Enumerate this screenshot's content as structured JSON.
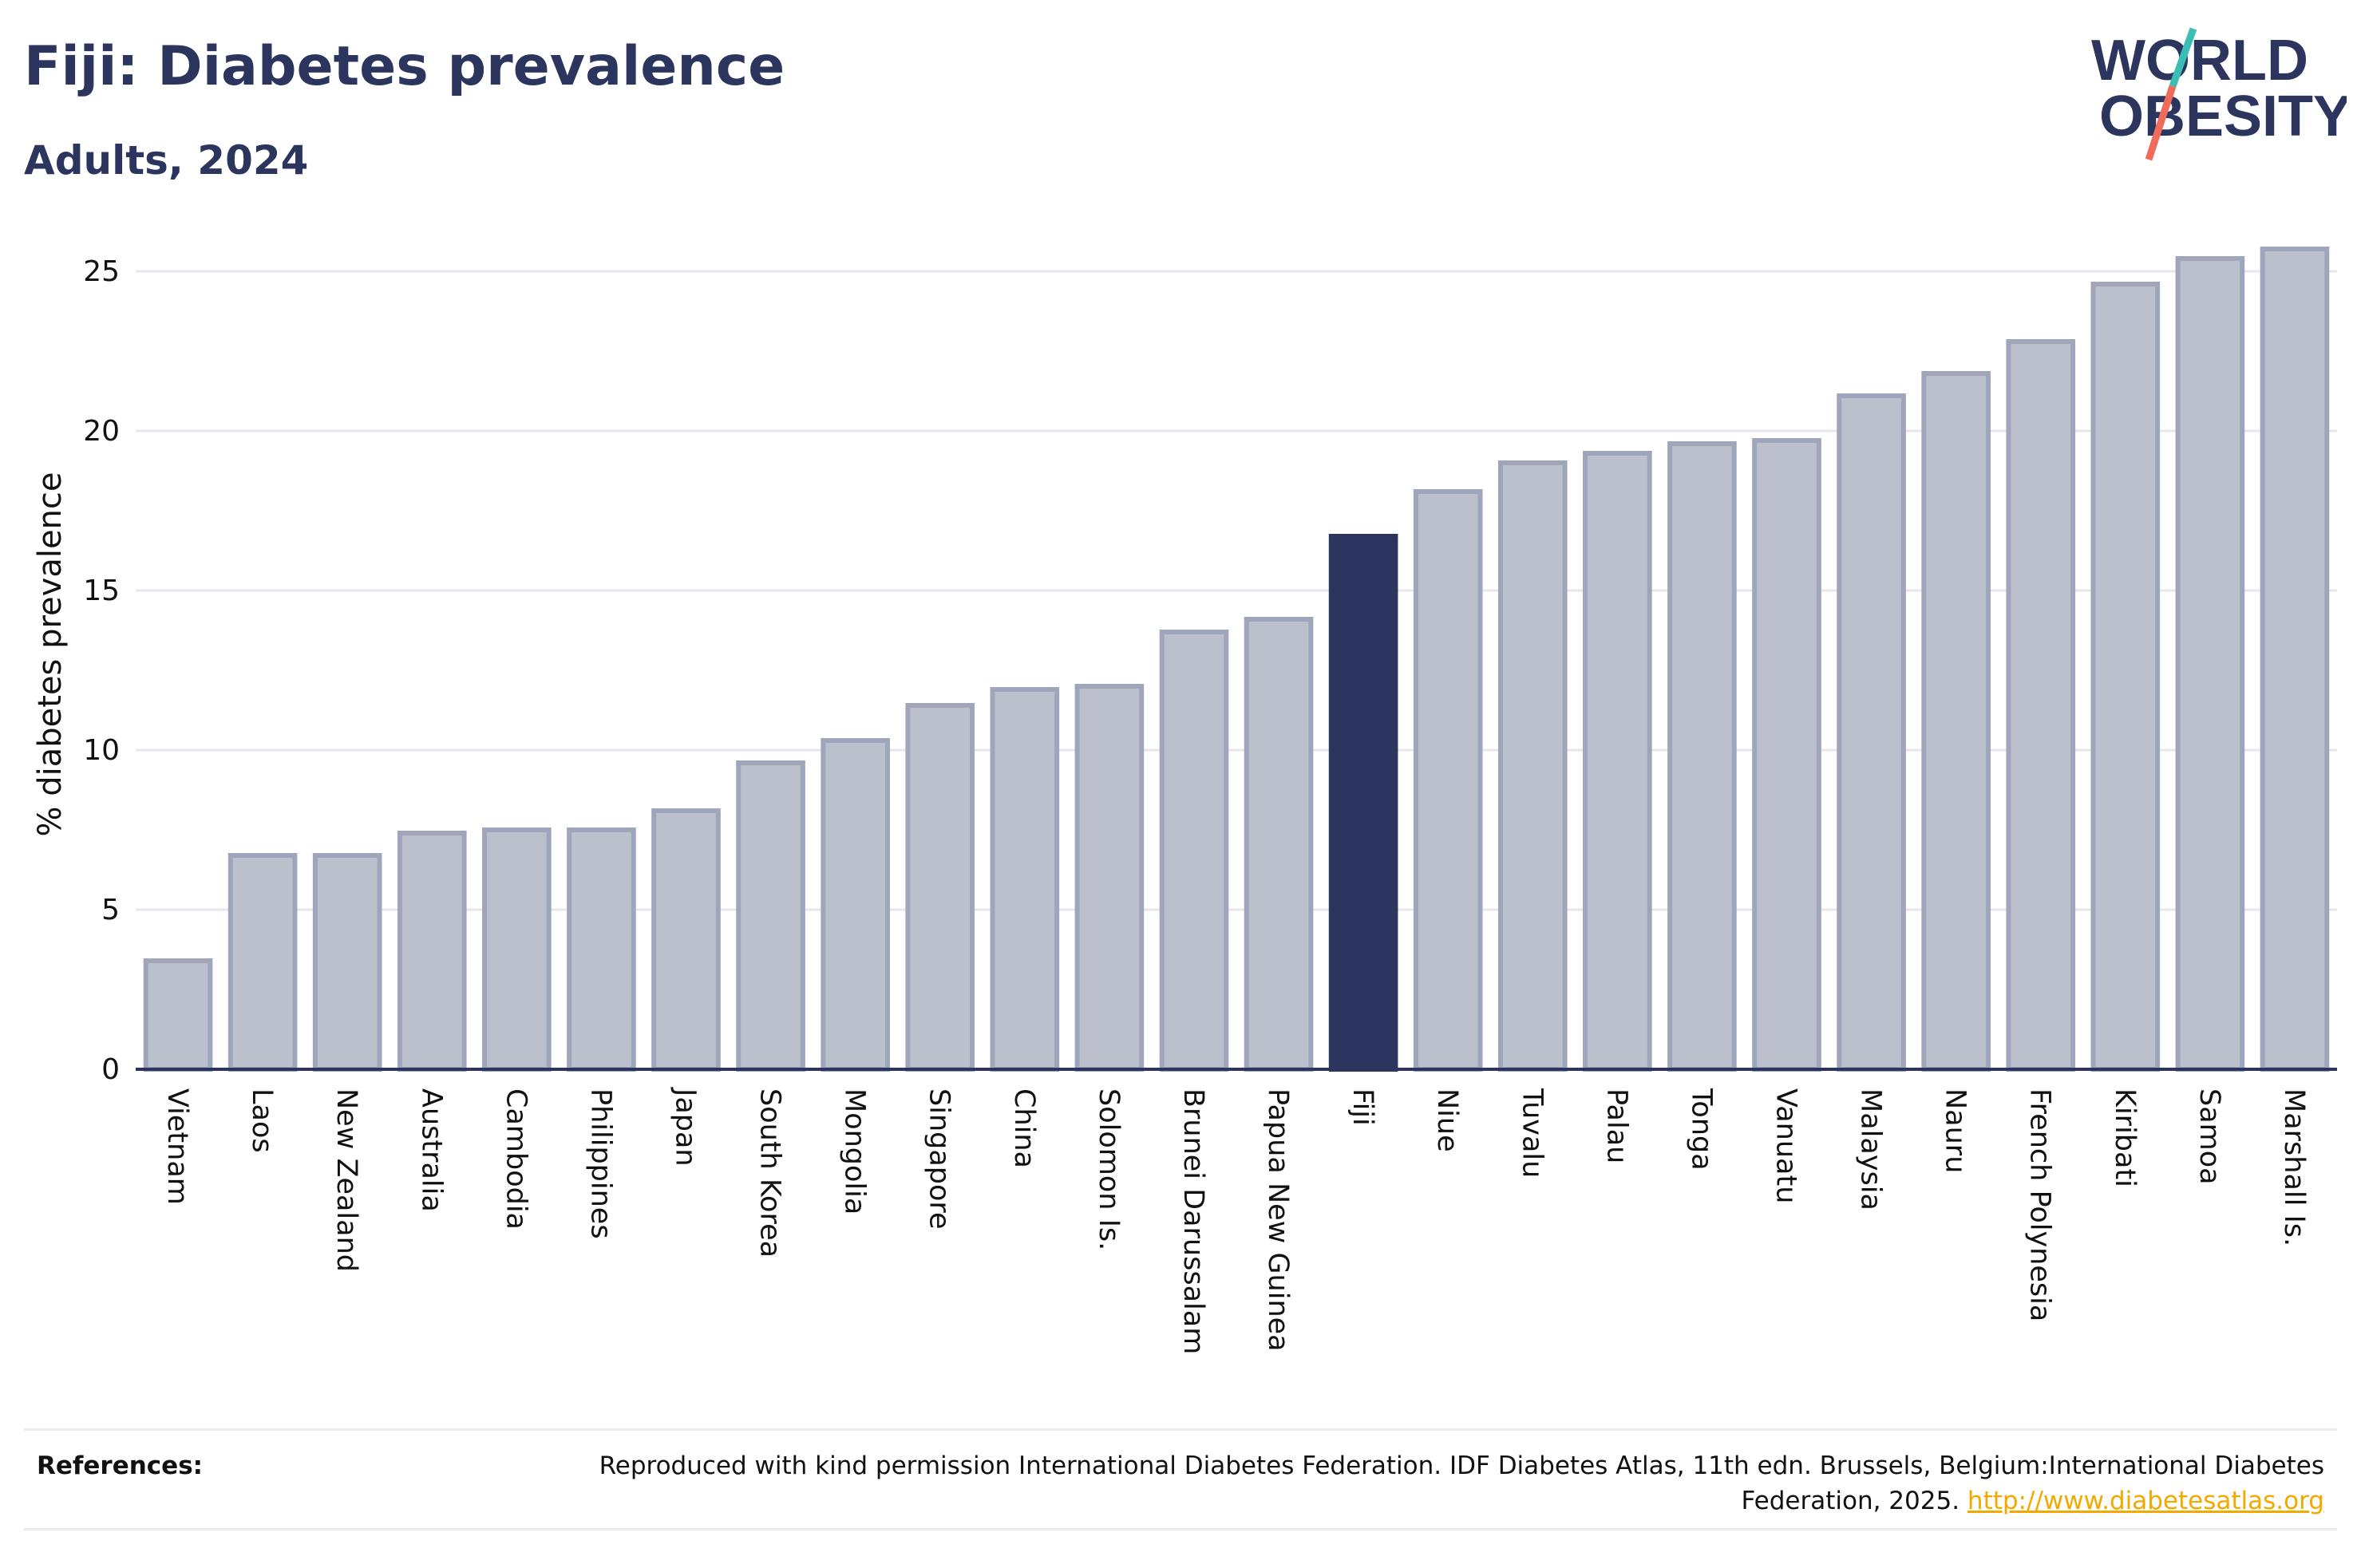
{
  "header": {
    "title": "Fiji: Diabetes prevalence",
    "subtitle": "Adults, 2024"
  },
  "logo": {
    "line1": "WORLD",
    "line2": "OBESITY",
    "slash_colors": [
      "#3bbfb5",
      "#ef6c5b"
    ]
  },
  "colors": {
    "highlight_bar": "#2b355e",
    "other_bar_fill": "#bcc0cd",
    "other_bar_stroke": "#9fa5ba",
    "gridline": "#e6e6ec",
    "axis": "#2b355e"
  },
  "chart_data": {
    "type": "bar",
    "title": "Fiji: Diabetes prevalence",
    "subtitle": "Adults, 2024",
    "ylabel": "% diabetes prevalence",
    "xlabel": "",
    "ylim": [
      0,
      26
    ],
    "yticks": [
      0,
      5,
      10,
      15,
      20,
      25
    ],
    "grid": true,
    "highlight": "Fiji",
    "categories": [
      "Vietnam",
      "Laos",
      "New Zealand",
      "Australia",
      "Cambodia",
      "Philippines",
      "Japan",
      "South Korea",
      "Mongolia",
      "Singapore",
      "China",
      "Solomon Is.",
      "Brunei Darussalam",
      "Papua New Guinea",
      "Fiji",
      "Niue",
      "Tuvalu",
      "Palau",
      "Tonga",
      "Vanuatu",
      "Malaysia",
      "Nauru",
      "French Polynesia",
      "Kiribati",
      "Samoa",
      "Marshall Is."
    ],
    "values": [
      3.4,
      6.7,
      6.7,
      7.4,
      7.5,
      7.5,
      8.1,
      9.6,
      10.3,
      11.4,
      11.9,
      12.0,
      13.7,
      14.1,
      16.7,
      18.1,
      19.0,
      19.3,
      19.6,
      19.7,
      21.1,
      21.8,
      22.8,
      24.6,
      25.4,
      25.7
    ]
  },
  "references": {
    "label": "References:",
    "text": "Reproduced with kind permission International Diabetes Federation. IDF Diabetes Atlas, 11th edn. Brussels, Belgium:International Diabetes Federation, 2025.",
    "link": "http://www.diabetesatlas.org"
  }
}
